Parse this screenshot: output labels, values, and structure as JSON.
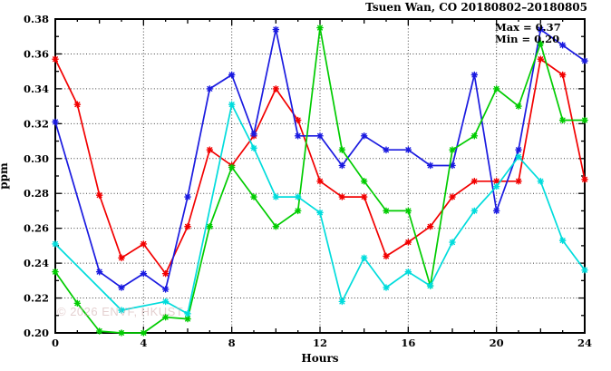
{
  "title": "Tsuen Wan, CO 20180802–20180805",
  "annotations": {
    "max": "Max = 0.37",
    "min": "Min = 0.20"
  },
  "watermark": "© 2026 ENVF, HKUST",
  "chart_data": {
    "type": "line",
    "title": "Tsuen Wan, CO 20180802–20180805",
    "xlabel": "Hours",
    "ylabel": "ppm",
    "xlim": [
      0,
      24
    ],
    "ylim": [
      0.2,
      0.38
    ],
    "xticks": [
      0,
      4,
      8,
      12,
      16,
      20,
      24
    ],
    "yticks": [
      0.2,
      0.22,
      0.24,
      0.26,
      0.28,
      0.3,
      0.32,
      0.34,
      0.36,
      0.38
    ],
    "grid": true,
    "legend": "none",
    "x": [
      0,
      1,
      2,
      3,
      4,
      5,
      6,
      7,
      8,
      9,
      10,
      11,
      12,
      13,
      14,
      15,
      16,
      17,
      18,
      19,
      20,
      21,
      22,
      23,
      24
    ],
    "series": [
      {
        "name": "red-line",
        "color": "#f20000",
        "values": [
          0.357,
          0.331,
          0.279,
          0.243,
          0.251,
          0.234,
          0.261,
          0.305,
          0.296,
          0.313,
          0.34,
          0.322,
          0.287,
          0.278,
          0.278,
          0.244,
          0.252,
          0.261,
          0.278,
          0.287,
          0.287,
          0.287,
          0.357,
          0.348,
          0.288
        ]
      },
      {
        "name": "blue-line",
        "color": "#1a1ae0",
        "values": [
          0.321,
          null,
          0.235,
          0.226,
          0.234,
          0.225,
          0.278,
          0.34,
          0.348,
          0.314,
          0.374,
          0.313,
          0.313,
          0.296,
          0.313,
          0.305,
          0.305,
          0.296,
          0.296,
          0.348,
          0.27,
          0.305,
          0.374,
          0.365,
          0.356
        ]
      },
      {
        "name": "green-line",
        "color": "#00cc00",
        "values": [
          0.235,
          0.217,
          0.201,
          0.2,
          0.2,
          0.209,
          0.208,
          0.261,
          0.295,
          0.278,
          0.261,
          0.27,
          0.375,
          0.305,
          0.287,
          0.27,
          0.27,
          0.227,
          0.305,
          0.313,
          0.34,
          0.33,
          0.366,
          0.322,
          0.322
        ]
      },
      {
        "name": "cyan-line",
        "color": "#00dcdc",
        "values": [
          0.251,
          null,
          null,
          0.213,
          null,
          0.218,
          0.211,
          null,
          0.331,
          0.306,
          0.278,
          0.278,
          0.269,
          0.218,
          0.243,
          0.226,
          0.235,
          0.227,
          0.252,
          0.27,
          0.284,
          0.301,
          0.287,
          0.253,
          0.236
        ]
      }
    ]
  }
}
